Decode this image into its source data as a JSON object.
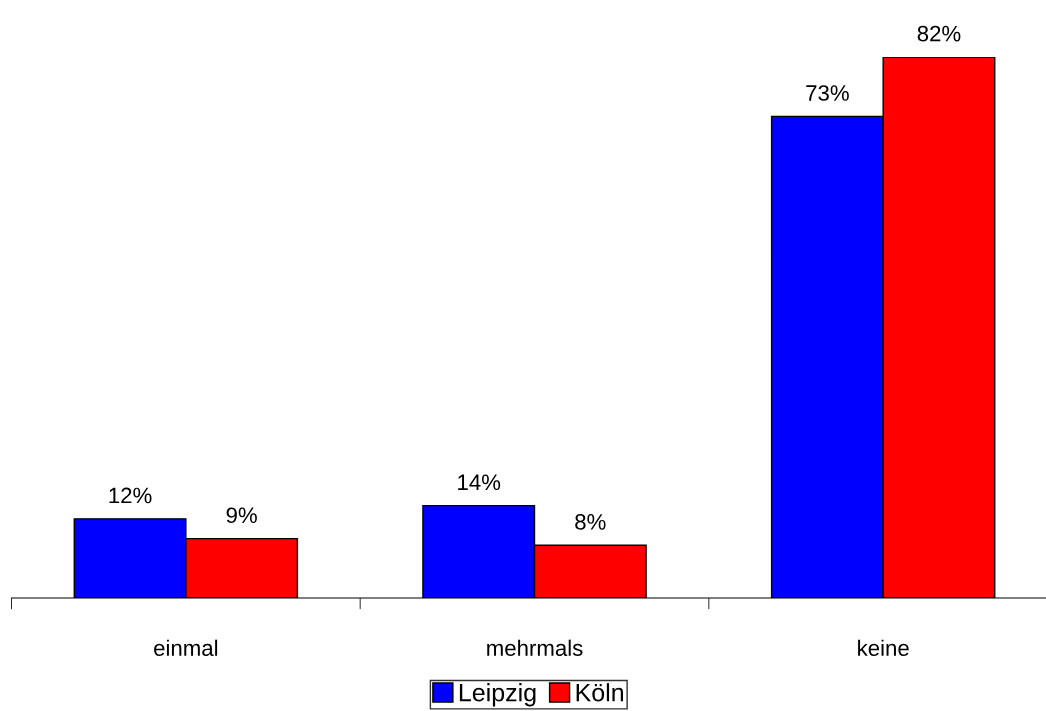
{
  "chart_data": {
    "type": "bar",
    "categories": [
      "einmal",
      "mehrmals",
      "keine"
    ],
    "series": [
      {
        "name": "Leipzig",
        "color": "#0000ff",
        "values": [
          12,
          14,
          73
        ],
        "value_labels": [
          "12%",
          "14%",
          "73%"
        ]
      },
      {
        "name": "Köln",
        "color": "#ff0000",
        "values": [
          9,
          8,
          82
        ],
        "value_labels": [
          "9%",
          "8%",
          "82%"
        ]
      }
    ],
    "legend": "bottom",
    "grid": false
  }
}
